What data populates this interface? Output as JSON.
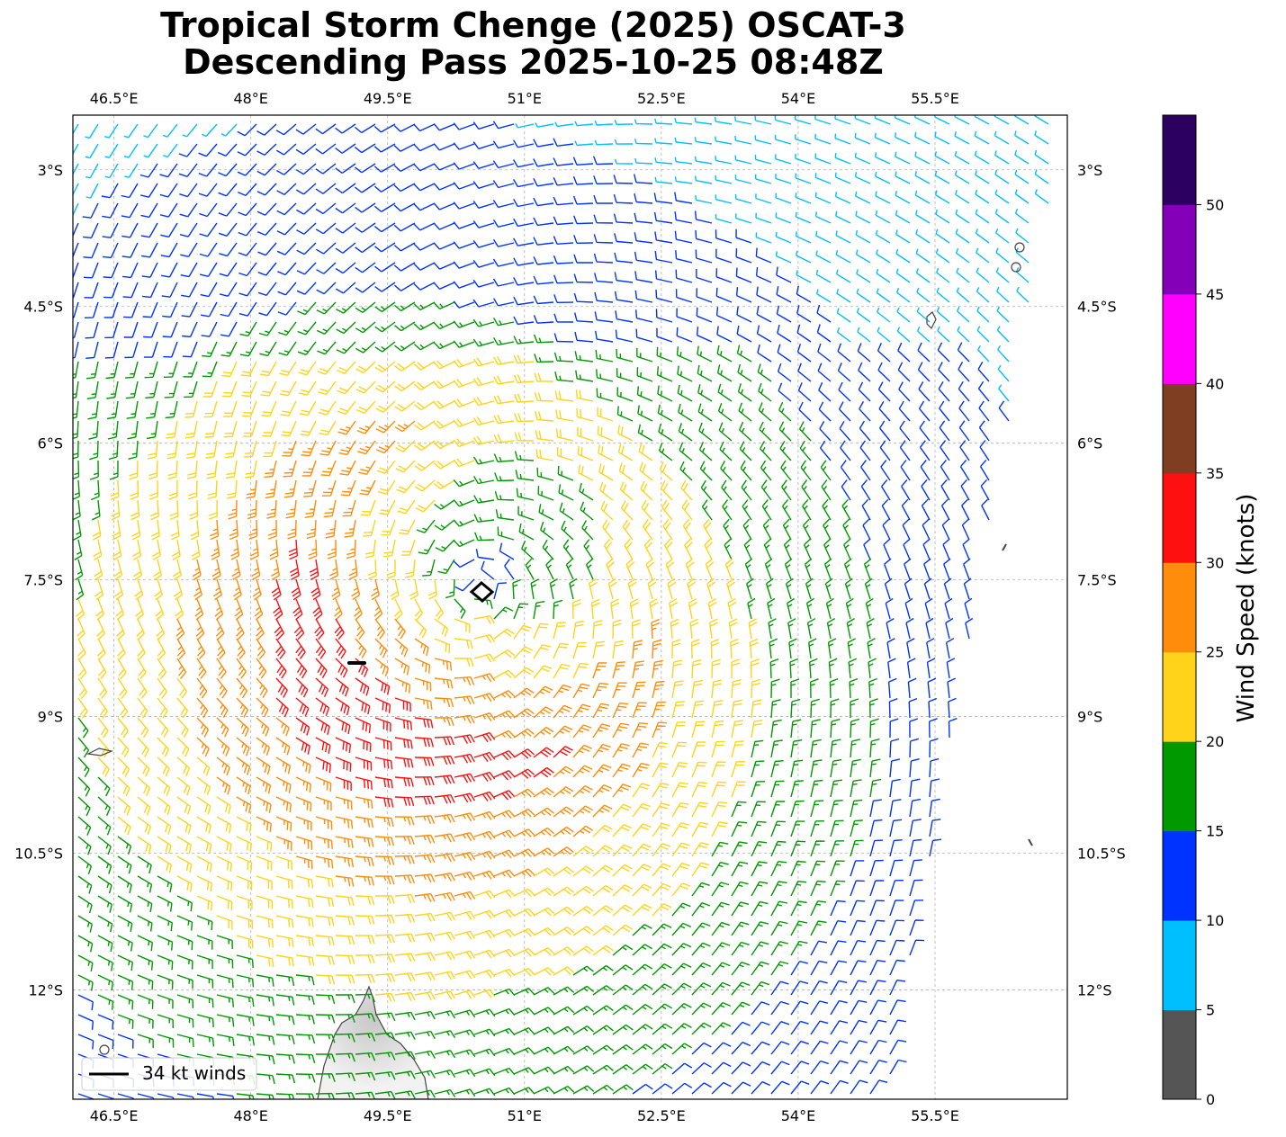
{
  "title": {
    "line1": "Tropical Storm Chenge (2025) OSCAT-3",
    "line2": "Descending Pass 2025-10-25 08:48Z"
  },
  "map": {
    "lon_range": [
      46.05,
      56.95
    ],
    "lat_range": [
      -13.2,
      -2.4
    ],
    "lon_ticks": [
      "46.5°E",
      "48°E",
      "49.5°E",
      "51°E",
      "52.5°E",
      "54°E",
      "55.5°E"
    ],
    "lon_tick_values": [
      46.5,
      48,
      49.5,
      51,
      52.5,
      54,
      55.5
    ],
    "lat_ticks": [
      "3°S",
      "4.5°S",
      "6°S",
      "7.5°S",
      "9°S",
      "10.5°S",
      "12°S"
    ],
    "lat_tick_values": [
      -3,
      -4.5,
      -6,
      -7.5,
      -9,
      -10.5,
      -12
    ],
    "gridlines": true,
    "storm_center": {
      "lon": 50.5,
      "lat": -7.6
    }
  },
  "legend": {
    "label": "34 kt winds",
    "placement": "lower-left"
  },
  "colorbar": {
    "title": "Wind Speed (knots)",
    "ticks": [
      "0",
      "5",
      "10",
      "15",
      "20",
      "25",
      "30",
      "35",
      "40",
      "45",
      "50"
    ],
    "bins": [
      {
        "min": 0,
        "max": 5,
        "color": "#555555"
      },
      {
        "min": 5,
        "max": 10,
        "color": "#00bfff"
      },
      {
        "min": 10,
        "max": 15,
        "color": "#0033ff"
      },
      {
        "min": 15,
        "max": 20,
        "color": "#009900"
      },
      {
        "min": 20,
        "max": 25,
        "color": "#ffd31a"
      },
      {
        "min": 25,
        "max": 30,
        "color": "#ff8c0a"
      },
      {
        "min": 30,
        "max": 35,
        "color": "#ff1010"
      },
      {
        "min": 35,
        "max": 40,
        "color": "#7f3d22"
      },
      {
        "min": 40,
        "max": 45,
        "color": "#ff00ff"
      },
      {
        "min": 45,
        "max": 50,
        "color": "#8400b8"
      },
      {
        "min": 50,
        "max": 55,
        "color": "#2b0060"
      }
    ]
  }
}
